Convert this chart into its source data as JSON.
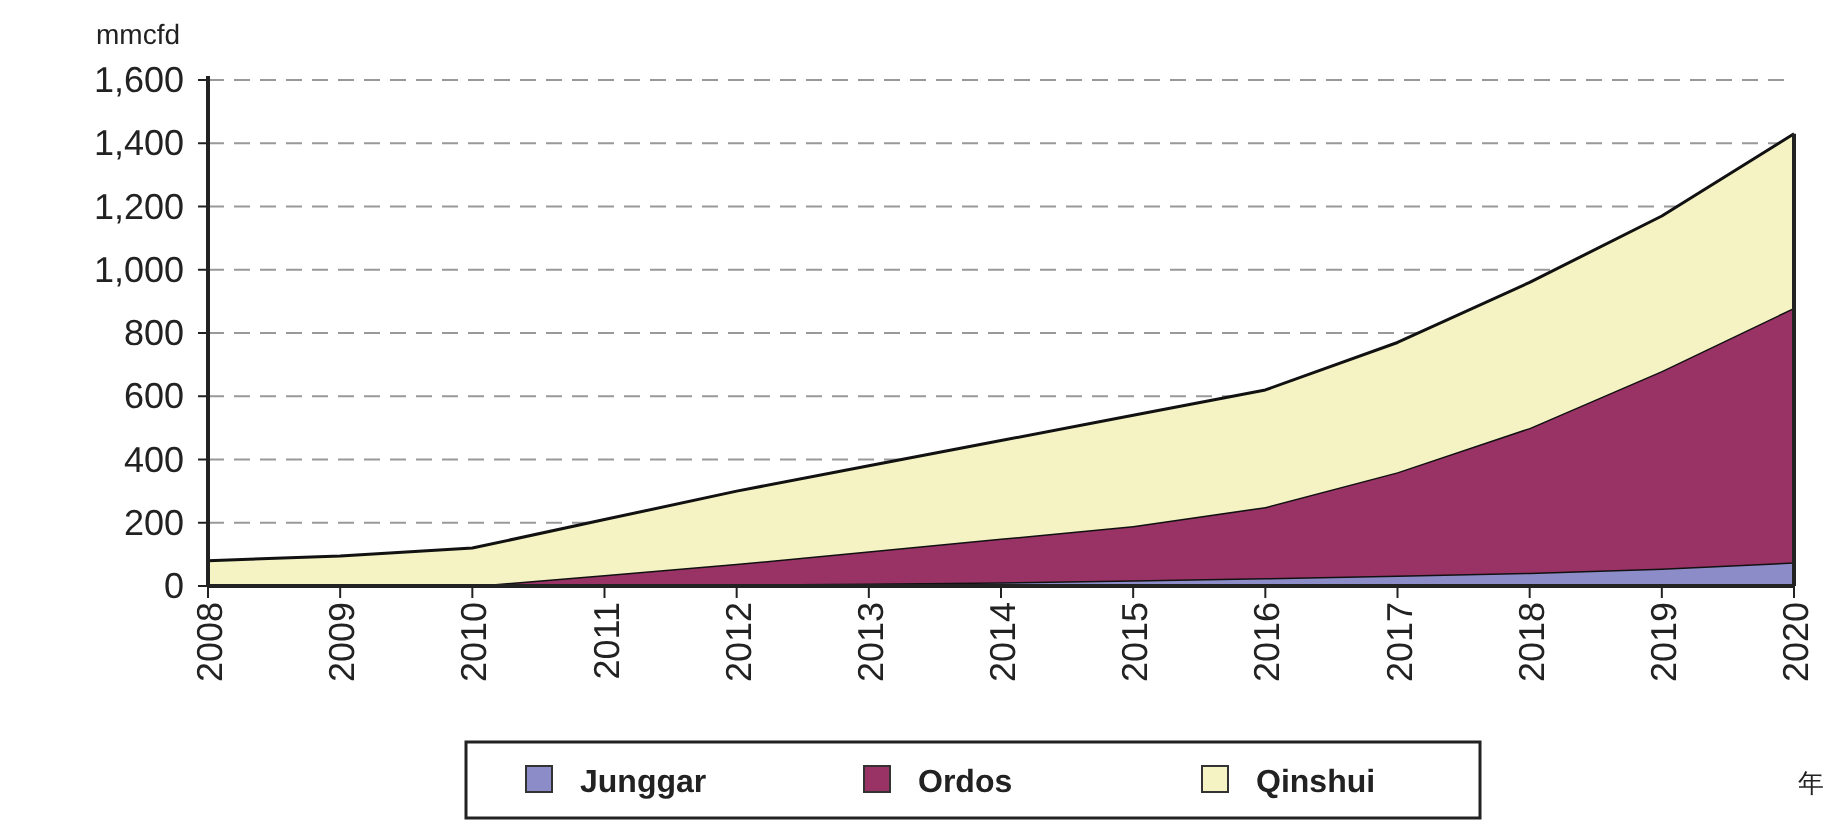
{
  "chart_data": {
    "type": "area",
    "stacked": true,
    "ylabel": "mmcfd",
    "xlabel": "年",
    "categories": [
      "2008",
      "2009",
      "2010",
      "2011",
      "2012",
      "2013",
      "2014",
      "2015",
      "2016",
      "2017",
      "2018",
      "2019",
      "2020"
    ],
    "series": [
      {
        "name": "Junggar",
        "color": "#8c8cc8",
        "values": [
          0,
          0,
          0,
          2,
          5,
          8,
          12,
          18,
          25,
          33,
          42,
          55,
          75
        ]
      },
      {
        "name": "Ordos",
        "color": "#993366",
        "values": [
          0,
          0,
          0,
          33,
          65,
          102,
          138,
          172,
          225,
          327,
          458,
          625,
          805
        ]
      },
      {
        "name": "Qinshui",
        "color": "#f5f2c4",
        "values": [
          80,
          95,
          120,
          175,
          230,
          270,
          310,
          350,
          370,
          410,
          460,
          490,
          550
        ]
      }
    ],
    "ylim": [
      0,
      1600
    ],
    "yticks": [
      0,
      200,
      400,
      600,
      800,
      {
        "value": 1000,
        "label": "1,000"
      },
      {
        "value": 1200,
        "label": "1,200"
      },
      {
        "value": 1400,
        "label": "1,400"
      },
      {
        "value": 1600,
        "label": "1,600"
      }
    ],
    "grid": "y",
    "legend": "bottom"
  }
}
